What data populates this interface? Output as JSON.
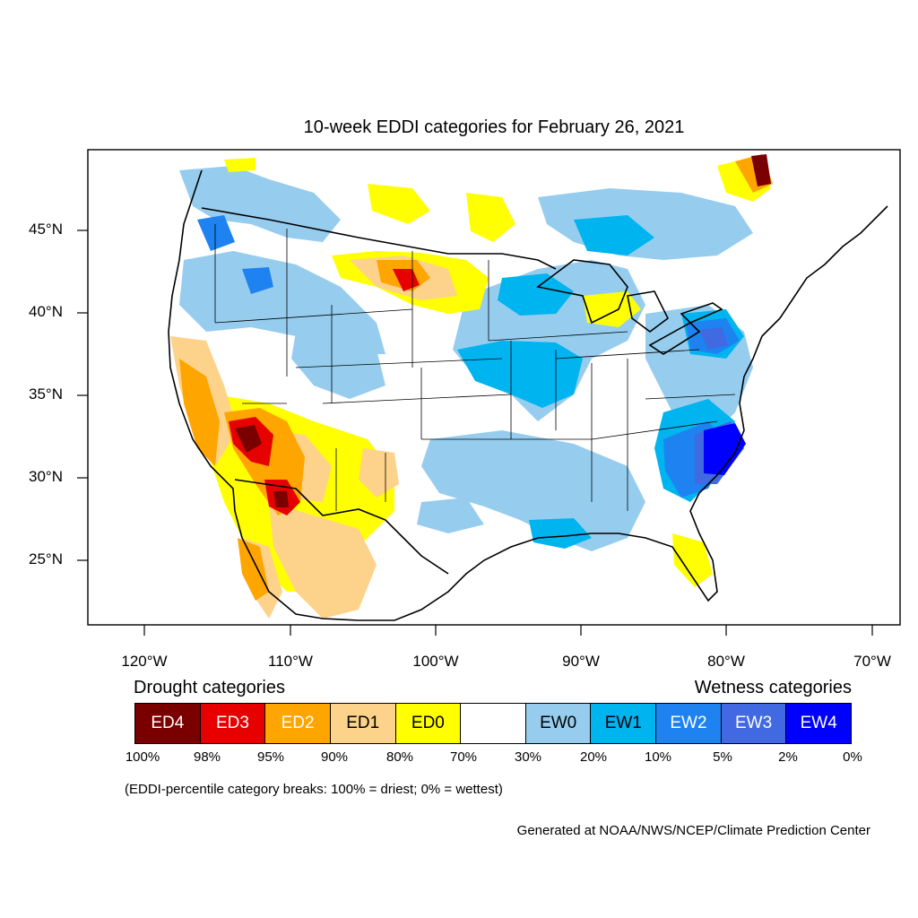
{
  "title": "10-week EDDI categories for February 26, 2021",
  "map": {
    "lat_labels": [
      "45°N",
      "40°N",
      "35°N",
      "30°N",
      "25°N"
    ],
    "lon_labels": [
      "120°W",
      "110°W",
      "100°W",
      "90°W",
      "80°W",
      "70°W"
    ]
  },
  "legend": {
    "drought_heading": "Drought categories",
    "wetness_heading": "Wetness categories",
    "categories": [
      {
        "label": "ED4",
        "color": "#7a0000",
        "text_color": "#ffffff"
      },
      {
        "label": "ED3",
        "color": "#e60000",
        "text_color": "#ffffff"
      },
      {
        "label": "ED2",
        "color": "#ffa500",
        "text_color": "#ffffff"
      },
      {
        "label": "ED1",
        "color": "#fdd28a",
        "text_color": "#000000"
      },
      {
        "label": "ED0",
        "color": "#ffff00",
        "text_color": "#000000"
      },
      {
        "label": "",
        "color": "#ffffff",
        "text_color": "#000000"
      },
      {
        "label": "EW0",
        "color": "#96cdef",
        "text_color": "#000000"
      },
      {
        "label": "EW1",
        "color": "#00b4f0",
        "text_color": "#000000"
      },
      {
        "label": "EW2",
        "color": "#1e82f0",
        "text_color": "#ffffff"
      },
      {
        "label": "EW3",
        "color": "#4169e1",
        "text_color": "#ffffff"
      },
      {
        "label": "EW4",
        "color": "#0000ff",
        "text_color": "#ffffff"
      }
    ],
    "percentiles": [
      "100%",
      "98%",
      "95%",
      "90%",
      "80%",
      "70%",
      "30%",
      "20%",
      "10%",
      "5%",
      "2%",
      "0%"
    ]
  },
  "breaks_note": "(EDDI-percentile category breaks: 100% = driest; 0% = wettest)",
  "credit": "Generated at NOAA/NWS/NCEP/Climate Prediction Center"
}
